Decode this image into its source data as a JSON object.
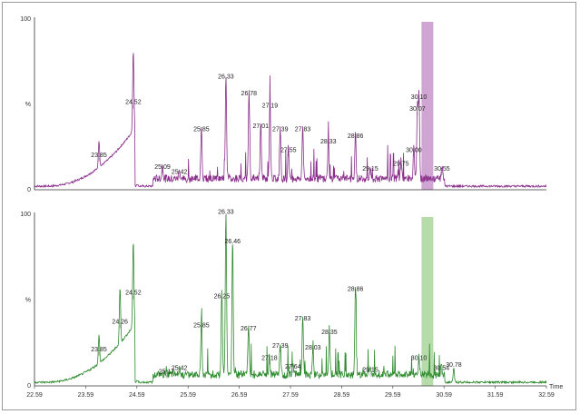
{
  "chart_data": [
    {
      "type": "line",
      "title": "",
      "xlabel": "Time",
      "ylabel": "%",
      "color": "#8a2e8a",
      "highlight_color": "#c895cd",
      "highlight_range": [
        30.15,
        30.38
      ],
      "xlim": [
        22.59,
        32.59
      ],
      "ylim": [
        0,
        100
      ],
      "y_ticks": [
        "0",
        "%",
        "100"
      ],
      "peaks": [
        {
          "label": "23.85",
          "x": 23.85,
          "y": 16
        },
        {
          "label": "24.52",
          "x": 24.52,
          "y": 47
        },
        {
          "label": "25.09",
          "x": 25.09,
          "y": 9
        },
        {
          "label": "25.42",
          "x": 25.42,
          "y": 6
        },
        {
          "label": "25.85",
          "x": 25.85,
          "y": 31
        },
        {
          "label": "26.33",
          "x": 26.33,
          "y": 62
        },
        {
          "label": "26.78",
          "x": 26.78,
          "y": 52
        },
        {
          "label": "27.01",
          "x": 27.01,
          "y": 33
        },
        {
          "label": "27.19",
          "x": 27.19,
          "y": 45
        },
        {
          "label": "27.39",
          "x": 27.39,
          "y": 31
        },
        {
          "label": "27.55",
          "x": 27.55,
          "y": 19
        },
        {
          "label": "27.83",
          "x": 27.83,
          "y": 31
        },
        {
          "label": "28.33",
          "x": 28.33,
          "y": 24
        },
        {
          "label": "28.86",
          "x": 28.86,
          "y": 27
        },
        {
          "label": "29.15",
          "x": 29.15,
          "y": 8
        },
        {
          "label": "29.75",
          "x": 29.75,
          "y": 11
        },
        {
          "label": "30.00",
          "x": 30.0,
          "y": 19
        },
        {
          "label": "30.07",
          "x": 30.07,
          "y": 43
        },
        {
          "label": "30.10",
          "x": 30.1,
          "y": 50
        },
        {
          "label": "30.55",
          "x": 30.55,
          "y": 8
        }
      ]
    },
    {
      "type": "line",
      "title": "",
      "xlabel": "Time",
      "ylabel": "%",
      "color": "#2e8b2e",
      "highlight_color": "#a9d79a",
      "highlight_range": [
        30.15,
        30.38
      ],
      "xlim": [
        22.59,
        32.59
      ],
      "ylim": [
        0,
        100
      ],
      "y_ticks": [
        "0",
        "%",
        "100"
      ],
      "x_ticks": [
        "22.59",
        "23.59",
        "24.59",
        "25.59",
        "26.59",
        "27.59",
        "28.59",
        "29.59",
        "30.59",
        "31.59",
        "32.59"
      ],
      "peaks": [
        {
          "label": "23.85",
          "x": 23.85,
          "y": 17
        },
        {
          "label": "24.26",
          "x": 24.26,
          "y": 33
        },
        {
          "label": "24.52",
          "x": 24.52,
          "y": 50
        },
        {
          "label": "25.17",
          "x": 25.17,
          "y": 4
        },
        {
          "label": "25.42",
          "x": 25.42,
          "y": 6
        },
        {
          "label": "25.85",
          "x": 25.85,
          "y": 31
        },
        {
          "label": "26.25",
          "x": 26.25,
          "y": 48
        },
        {
          "label": "26.33",
          "x": 26.33,
          "y": 97
        },
        {
          "label": "26.46",
          "x": 26.46,
          "y": 80
        },
        {
          "label": "26.77",
          "x": 26.77,
          "y": 29
        },
        {
          "label": "27.18",
          "x": 27.18,
          "y": 12
        },
        {
          "label": "27.39",
          "x": 27.39,
          "y": 19
        },
        {
          "label": "27.64",
          "x": 27.64,
          "y": 7
        },
        {
          "label": "27.83",
          "x": 27.83,
          "y": 35
        },
        {
          "label": "28.03",
          "x": 28.03,
          "y": 18
        },
        {
          "label": "28.35",
          "x": 28.35,
          "y": 27
        },
        {
          "label": "28.86",
          "x": 28.86,
          "y": 52
        },
        {
          "label": "29.15",
          "x": 29.15,
          "y": 5
        },
        {
          "label": "30.10",
          "x": 30.1,
          "y": 12
        },
        {
          "label": "30.54",
          "x": 30.54,
          "y": 6
        },
        {
          "label": "30.78",
          "x": 30.78,
          "y": 8
        }
      ]
    }
  ]
}
